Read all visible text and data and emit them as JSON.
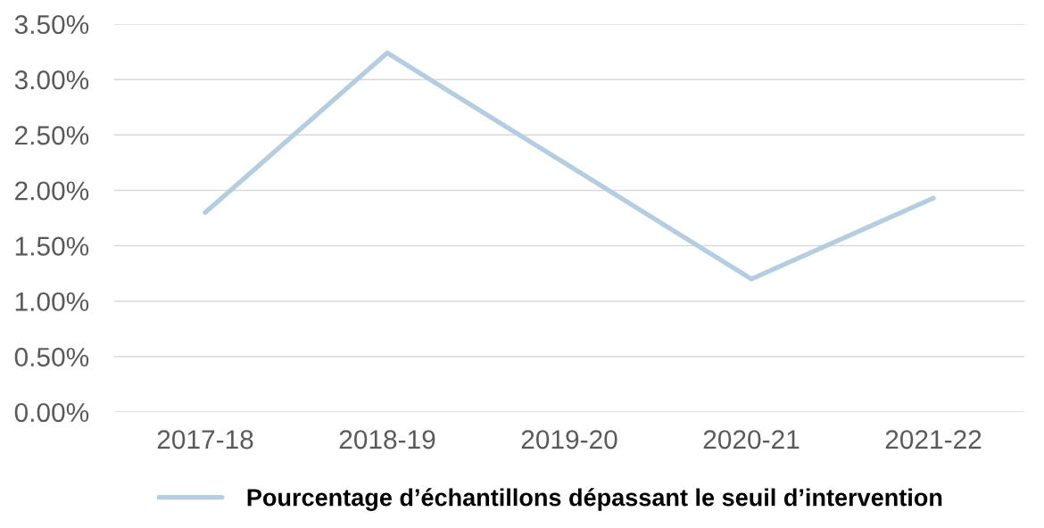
{
  "chart_data": {
    "type": "line",
    "categories": [
      "2017-18",
      "2018-19",
      "2019-20",
      "2020-21",
      "2021-22"
    ],
    "series": [
      {
        "name": "Pourcentage d’échantillons dépassant le seuil d’intervention",
        "color": "#b4cde0",
        "values": [
          1.8,
          3.24,
          2.22,
          1.2,
          1.93
        ]
      }
    ],
    "ylim": [
      0,
      3.5
    ],
    "yticks": [
      {
        "value": 0,
        "label": "0.00%"
      },
      {
        "value": 0.5,
        "label": "0.50%"
      },
      {
        "value": 1,
        "label": "1.00%"
      },
      {
        "value": 1.5,
        "label": "1.50%"
      },
      {
        "value": 2,
        "label": "2.00%"
      },
      {
        "value": 2.5,
        "label": "2.50%"
      },
      {
        "value": 3,
        "label": "3.00%"
      },
      {
        "value": 3.5,
        "label": "3.50%"
      }
    ],
    "grid": "y",
    "legend": "bottom",
    "marker": "none",
    "line_style": "solid"
  }
}
